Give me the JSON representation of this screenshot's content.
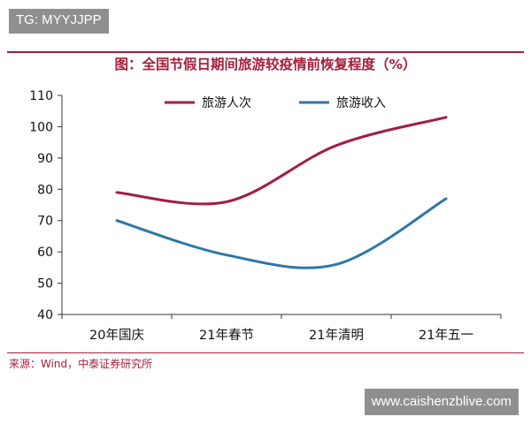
{
  "watermarks": {
    "top": "TG: MYYJJPP",
    "bottom": "www.caishenzblive.com"
  },
  "footer": {
    "source": "来源：Wind，中泰证券研究所"
  },
  "colors": {
    "accent": "#a51e3a",
    "series_tourism": "#a31c45",
    "series_income": "#2e77a8"
  },
  "chart_data": {
    "type": "line",
    "title": "图：全国节假日期间旅游较疫情前恢复程度（%）",
    "categories": [
      "20年国庆",
      "21年春节",
      "21年清明",
      "21年五一"
    ],
    "series": [
      {
        "name": "旅游人次",
        "values": [
          79,
          76,
          94,
          103
        ],
        "color": "#a31c45"
      },
      {
        "name": "旅游收入",
        "values": [
          70,
          59,
          56,
          77
        ],
        "color": "#2e77a8"
      }
    ],
    "ylim": [
      40,
      110
    ],
    "yticks": [
      40,
      50,
      60,
      70,
      80,
      90,
      100,
      110
    ],
    "grid": false,
    "legend": "top-center",
    "smooth": true
  }
}
